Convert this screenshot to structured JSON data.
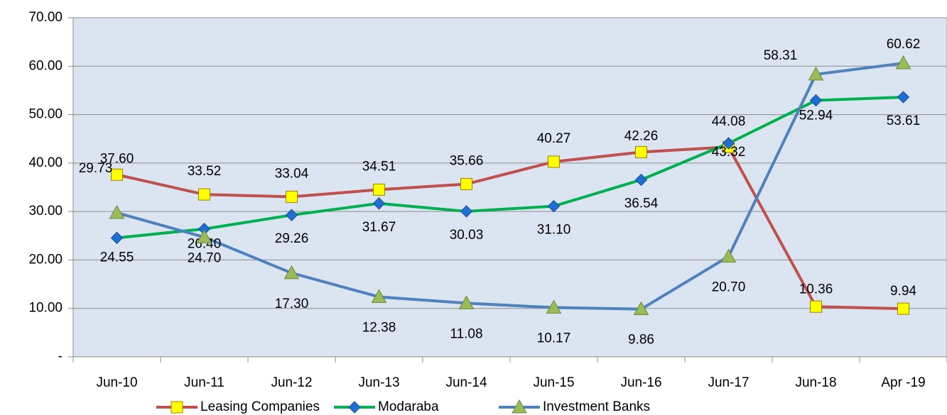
{
  "chart_data": {
    "type": "line",
    "categories": [
      "Jun-10",
      "Jun-11",
      "Jun-12",
      "Jun-13",
      "Jun-14",
      "Jun-15",
      "Jun-16",
      "Jun-17",
      "Jun-18",
      "Apr -19"
    ],
    "series": [
      {
        "name": "Leasing Companies",
        "color": "#c0504d",
        "marker_color": "#ffff00",
        "values": [
          37.6,
          33.52,
          33.04,
          34.51,
          35.66,
          40.27,
          42.26,
          43.32,
          10.36,
          9.94
        ],
        "value_labels": [
          "37.60",
          "33.52",
          "33.04",
          "34.51",
          "35.66",
          "40.27",
          "42.26",
          "43.32",
          "10.36",
          "9.94"
        ]
      },
      {
        "name": "Modaraba",
        "color": "#00b050",
        "marker_color": "#1f6fd1",
        "values": [
          24.55,
          26.4,
          29.26,
          31.67,
          30.03,
          31.1,
          36.54,
          44.08,
          52.94,
          53.61
        ],
        "value_labels": [
          "24.55",
          "26.40",
          "29.26",
          "31.67",
          "30.03",
          "31.10",
          "36.54",
          "44.08",
          "52.94",
          "53.61"
        ]
      },
      {
        "name": "Investment Banks",
        "color": "#4f81bd",
        "marker_color": "#9bbb59",
        "values": [
          29.73,
          24.7,
          17.3,
          12.38,
          11.08,
          10.17,
          9.86,
          20.7,
          58.31,
          60.62
        ],
        "value_labels": [
          "29.73",
          "24.70",
          "17.30",
          "12.38",
          "11.08",
          "10.17",
          "9.86",
          "20.70",
          "58.31",
          "60.62"
        ]
      }
    ],
    "ylim": [
      0,
      70
    ],
    "yticks": [
      {
        "value": 0,
        "label": "-"
      },
      {
        "value": 10,
        "label": "10.00"
      },
      {
        "value": 20,
        "label": "20.00"
      },
      {
        "value": 30,
        "label": "30.00"
      },
      {
        "value": 40,
        "label": "40.00"
      },
      {
        "value": 50,
        "label": "50.00"
      },
      {
        "value": 60,
        "label": "60.00"
      },
      {
        "value": 70,
        "label": "70.00"
      }
    ],
    "grid": true,
    "legend": "bottom"
  }
}
